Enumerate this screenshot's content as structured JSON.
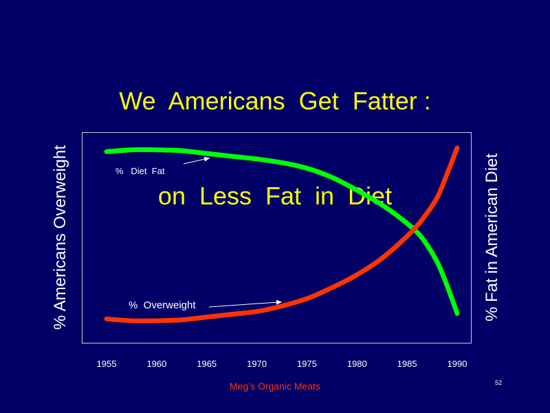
{
  "slide": {
    "title_line1": "We  Americans  Get  Fatter :",
    "title_line2": "on  Less  Fat  in  Diet",
    "footer": "Meg’s  Organic  Meats",
    "page_number": "52",
    "colors": {
      "background": "#000066",
      "title": "#ffff00",
      "footer": "#ff3300"
    }
  },
  "chart_data": {
    "type": "line",
    "title": "We Americans Get Fatter : on Less Fat in Diet",
    "xlabel": "",
    "ylabel_left": "%  Americans  Overweight",
    "ylabel_right": "%  Fat  in  American  Diet",
    "x_ticks": [
      "1955",
      "1960",
      "1965",
      "1970",
      "1975",
      "1980",
      "1985",
      "1990"
    ],
    "xlim": [
      1955,
      1990
    ],
    "ylim": [
      0,
      100
    ],
    "y_axis_values_shown": false,
    "grid": false,
    "series": [
      {
        "name": "%   Diet  Fat",
        "label": "%   Diet  Fat",
        "axis": "right",
        "color": "#00ff00",
        "x": [
          1955,
          1957.5,
          1960,
          1962.5,
          1965,
          1967.5,
          1970,
          1972.5,
          1975,
          1977.5,
          1980,
          1982.5,
          1985,
          1986.5,
          1988,
          1989,
          1990
        ],
        "y": [
          98,
          99,
          99,
          98.5,
          97,
          95.5,
          94,
          92,
          89,
          84,
          77,
          69,
          59,
          51,
          38,
          25,
          10
        ]
      },
      {
        "name": "%  Overweight",
        "label": "%  Overweight",
        "axis": "left",
        "color": "#ff3300",
        "x": [
          1955,
          1957.5,
          1960,
          1962.5,
          1965,
          1967.5,
          1970,
          1972.5,
          1975,
          1977.5,
          1980,
          1982.5,
          1985,
          1986.5,
          1988,
          1989,
          1990
        ],
        "y": [
          7,
          6,
          6,
          6.5,
          8,
          9.5,
          11,
          14,
          18,
          24,
          31,
          40,
          52,
          61,
          73,
          86,
          100
        ]
      }
    ],
    "annotations": [
      {
        "text": "%   Diet  Fat",
        "series": "%   Diet  Fat",
        "arrow_to_x": 1965.3
      },
      {
        "text": "%  Overweight",
        "series": "%  Overweight",
        "arrow_to_x": 1972.5
      }
    ]
  }
}
